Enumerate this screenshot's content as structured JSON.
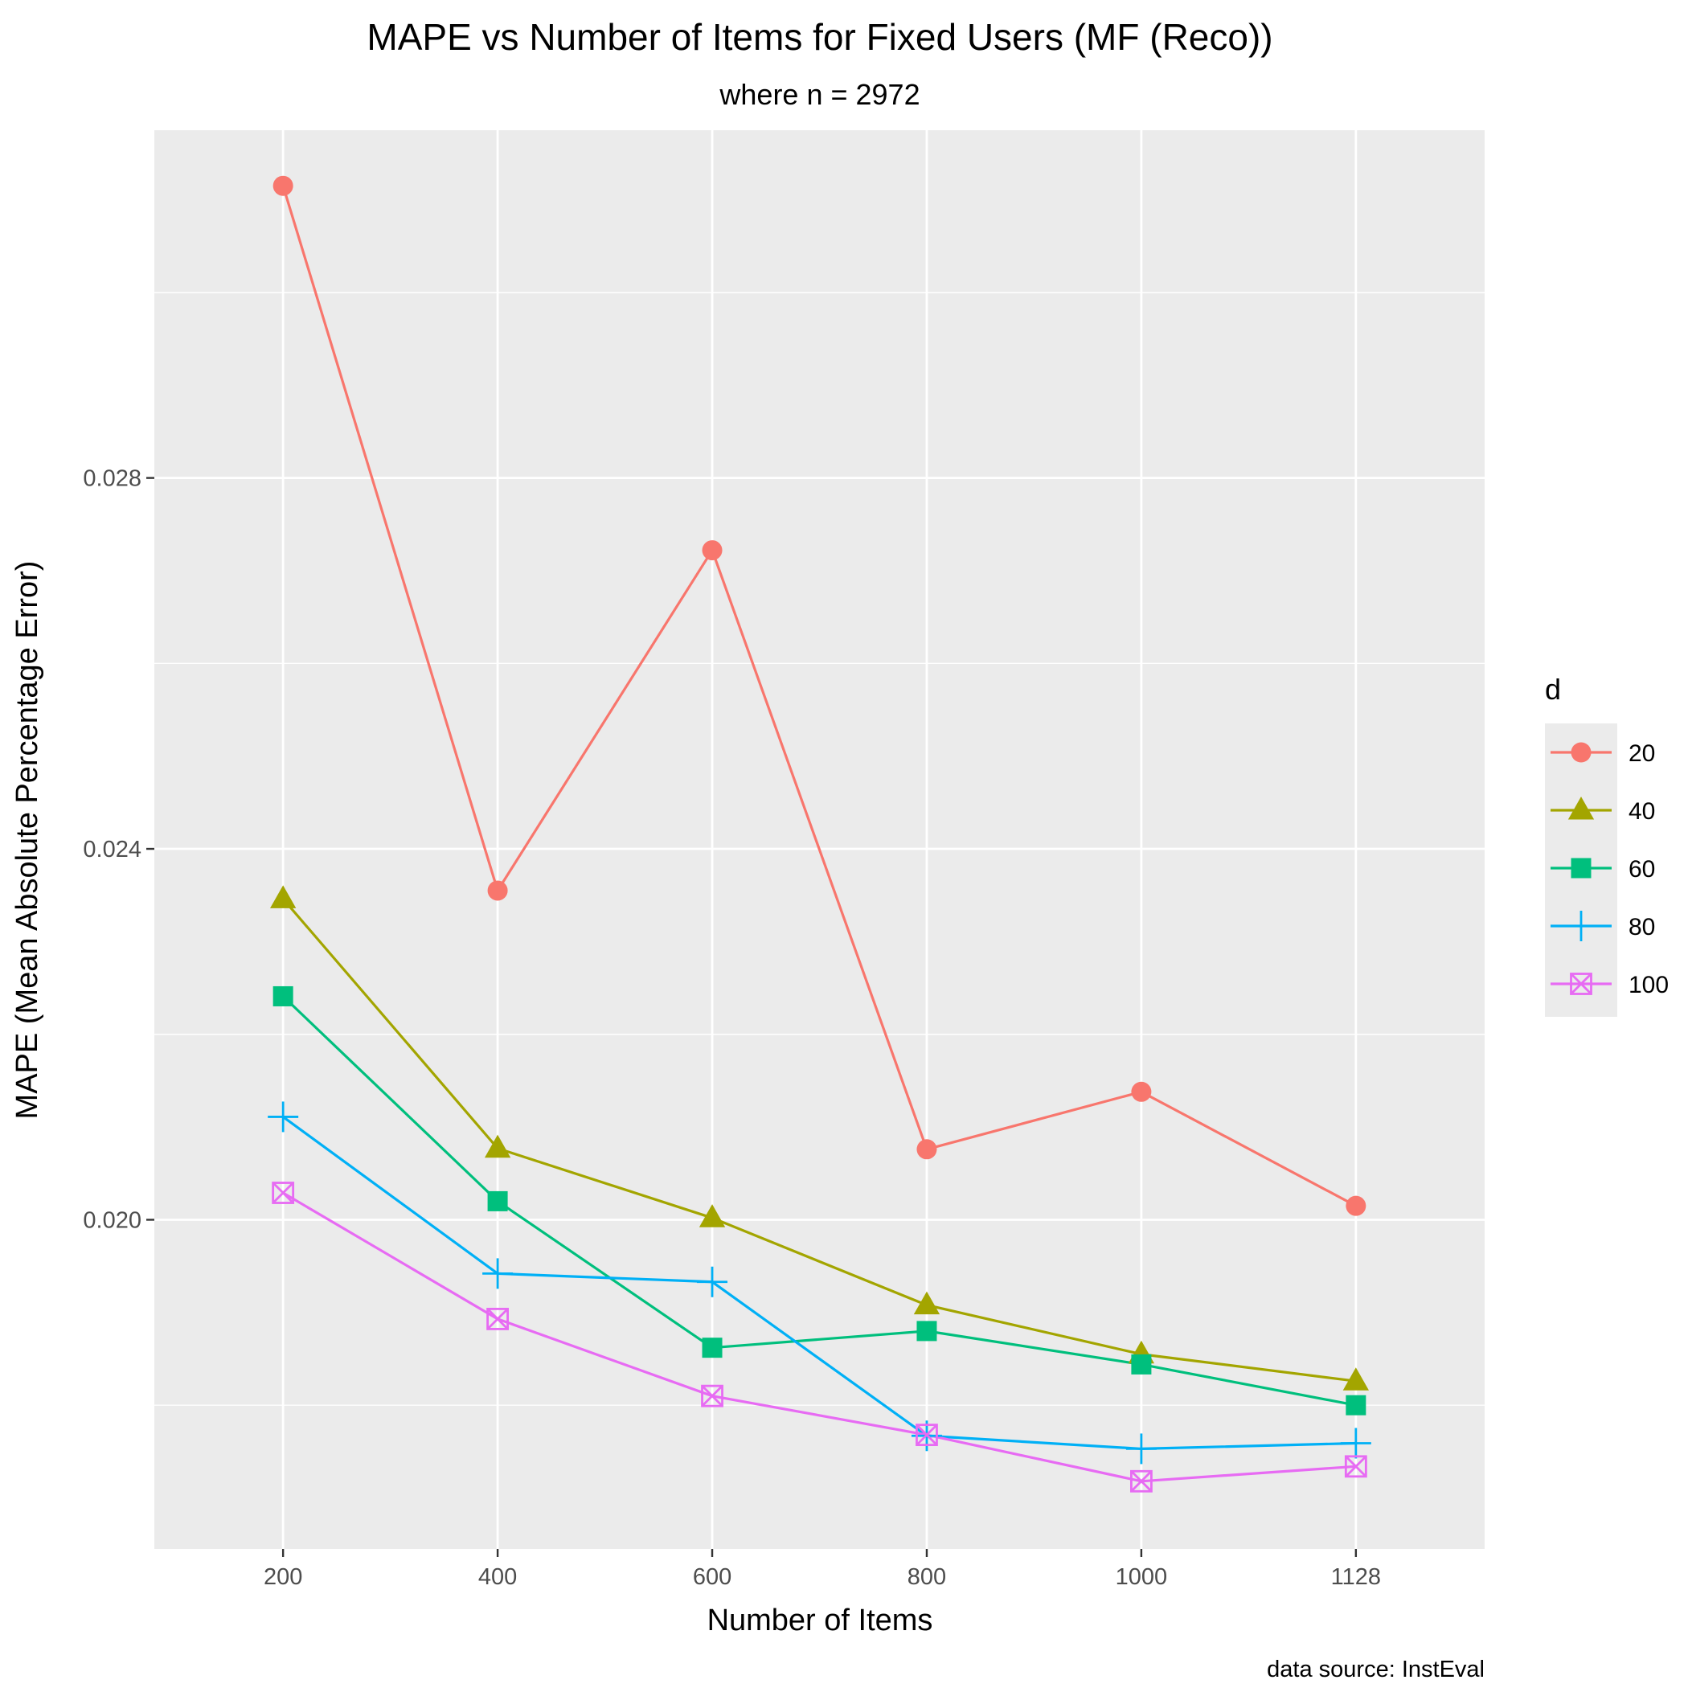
{
  "chart_data": {
    "type": "line",
    "title": "MAPE vs Number of Items for Fixed Users (MF (Reco))",
    "subtitle": "where n = 2972",
    "xlabel": "Number of Items",
    "ylabel": "MAPE (Mean Absolute Percentage Error)",
    "caption": "data source: InstEval",
    "x_categories": [
      "200",
      "400",
      "600",
      "800",
      "1000",
      "1128"
    ],
    "y_ticks": [
      "0.020",
      "0.024",
      "0.028"
    ],
    "y_tick_values": [
      0.02,
      0.024,
      0.028
    ],
    "ylim": [
      0.01645,
      0.03175
    ],
    "grid": true,
    "legend": {
      "title": "d",
      "position": "right"
    },
    "series": [
      {
        "name": "20",
        "color": "#F8766D",
        "shape": "circle",
        "values": [
          0.03115,
          0.02355,
          0.02722,
          0.02076,
          0.02138,
          0.02015
        ]
      },
      {
        "name": "40",
        "color": "#A3A500",
        "shape": "triangle",
        "values": [
          0.02346,
          0.02077,
          0.02002,
          0.01908,
          0.01855,
          0.01826
        ]
      },
      {
        "name": "60",
        "color": "#00BF7D",
        "shape": "square",
        "values": [
          0.02241,
          0.0202,
          0.01862,
          0.0188,
          0.01844,
          0.018
        ]
      },
      {
        "name": "80",
        "color": "#00B0F6",
        "shape": "plus",
        "values": [
          0.02111,
          0.01942,
          0.01933,
          0.01767,
          0.01753,
          0.01759
        ]
      },
      {
        "name": "100",
        "color": "#E76BF3",
        "shape": "square-cross",
        "values": [
          0.02029,
          0.01893,
          0.0181,
          0.01768,
          0.01718,
          0.01734
        ]
      }
    ]
  }
}
